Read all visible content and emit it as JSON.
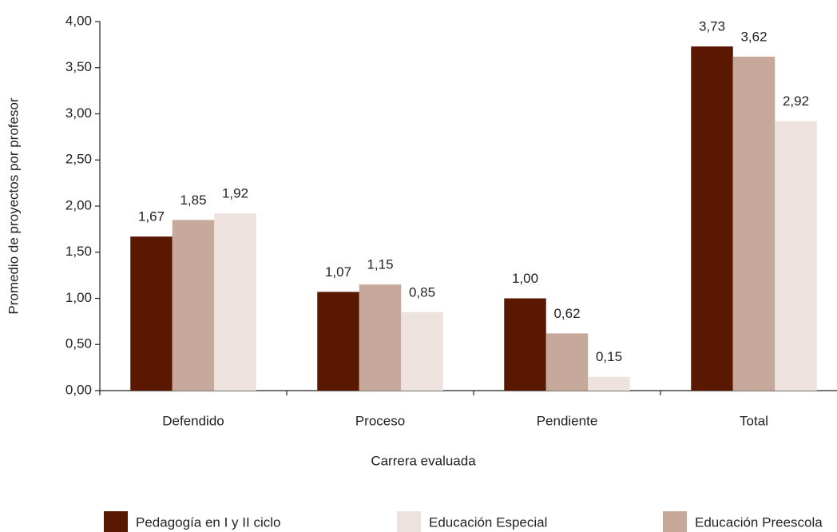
{
  "chart_data": {
    "type": "bar",
    "x_label": "Carrera evaluada",
    "y_label": "Promedio de proyectos por profesor",
    "categories": [
      "Defendido",
      "Proceso",
      "Pendiente",
      "Total"
    ],
    "series": [
      {
        "name": "Pedagogía en I y II ciclo",
        "color": "#5a1800",
        "values": [
          1.67,
          1.07,
          1.0,
          3.73
        ],
        "value_labels": [
          "1,67",
          "1,07",
          "1,00",
          "3,73"
        ]
      },
      {
        "name": "Educación Preescola",
        "color": "#c6a99b",
        "values": [
          1.85,
          1.15,
          0.62,
          3.62
        ],
        "value_labels": [
          "1,85",
          "1,15",
          "0,62",
          "3,62"
        ]
      },
      {
        "name": "Educación Especial",
        "color": "#ede2de",
        "values": [
          1.92,
          0.85,
          0.15,
          2.92
        ],
        "value_labels": [
          "1,92",
          "0,85",
          "0,15",
          "2,92"
        ]
      }
    ],
    "ylim": [
      0,
      4
    ],
    "yticks": [
      {
        "value": 0,
        "label": "0,00"
      },
      {
        "value": 0.5,
        "label": "0,50"
      },
      {
        "value": 1,
        "label": "1,00"
      },
      {
        "value": 1.5,
        "label": "1,50"
      },
      {
        "value": 2,
        "label": "2,00"
      },
      {
        "value": 2.5,
        "label": "2,50"
      },
      {
        "value": 3,
        "label": "3,00"
      },
      {
        "value": 3.5,
        "label": "3,50"
      },
      {
        "value": 4,
        "label": "4,00"
      }
    ],
    "grid": false
  }
}
